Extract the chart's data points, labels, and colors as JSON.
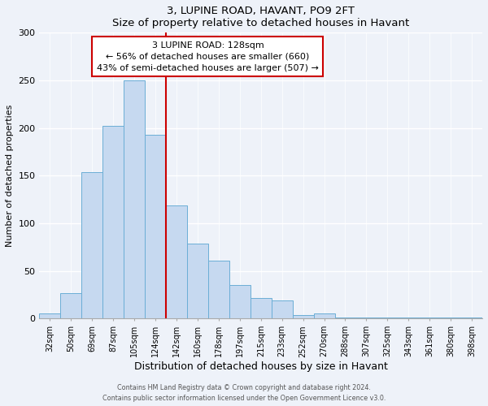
{
  "title": "3, LUPINE ROAD, HAVANT, PO9 2FT",
  "subtitle": "Size of property relative to detached houses in Havant",
  "xlabel": "Distribution of detached houses by size in Havant",
  "ylabel": "Number of detached properties",
  "bar_labels": [
    "32sqm",
    "50sqm",
    "69sqm",
    "87sqm",
    "105sqm",
    "124sqm",
    "142sqm",
    "160sqm",
    "178sqm",
    "197sqm",
    "215sqm",
    "233sqm",
    "252sqm",
    "270sqm",
    "288sqm",
    "307sqm",
    "325sqm",
    "343sqm",
    "361sqm",
    "380sqm",
    "398sqm"
  ],
  "bar_values": [
    5,
    27,
    154,
    202,
    250,
    193,
    119,
    79,
    61,
    35,
    22,
    19,
    4,
    5,
    1,
    1,
    1,
    1,
    1,
    1,
    1
  ],
  "bar_color": "#c6d9f0",
  "bar_edge_color": "#6baed6",
  "ylim": [
    0,
    300
  ],
  "yticks": [
    0,
    50,
    100,
    150,
    200,
    250,
    300
  ],
  "property_line_label": "3 LUPINE ROAD: 128sqm",
  "annotation_line1": "← 56% of detached houses are smaller (660)",
  "annotation_line2": "43% of semi-detached houses are larger (507) →",
  "line_color": "#cc0000",
  "annotation_box_edge": "#cc0000",
  "footer1": "Contains HM Land Registry data © Crown copyright and database right 2024.",
  "footer2": "Contains public sector information licensed under the Open Government Licence v3.0.",
  "background_color": "#eef2f9",
  "plot_bg_color": "#eef2f9"
}
